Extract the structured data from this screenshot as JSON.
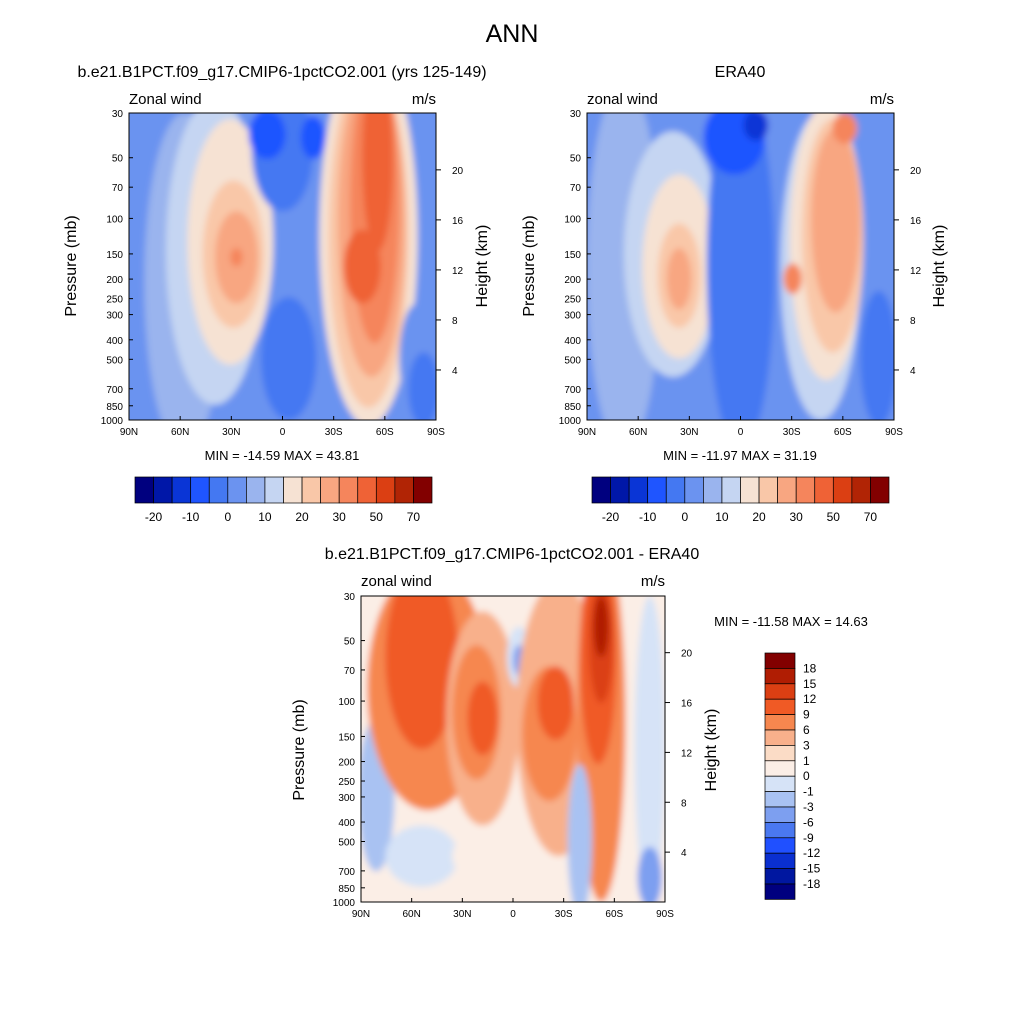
{
  "page_title": "ANN",
  "chart_data": [
    {
      "type": "heatmap",
      "title": "b.e21.B1PCT.f09_g17.CMIP6-1pctCO2.001 (yrs 125-149)",
      "left_label": "Zonal wind",
      "units": "m/s",
      "ylabel": "Pressure (mb)",
      "ylabel_right": "Height (km)",
      "x_ticks": [
        "90N",
        "60N",
        "30N",
        "0",
        "30S",
        "60S",
        "90S"
      ],
      "y_ticks": [
        "30",
        "50",
        "70",
        "100",
        "150",
        "200",
        "250",
        "300",
        "400",
        "500",
        "700",
        "850",
        "1000"
      ],
      "height_ticks": [
        "20",
        "16",
        "12",
        "8",
        "4"
      ],
      "stats_text": "MIN = -14.59  MAX = 43.81",
      "min": -14.59,
      "max": 43.81,
      "colorbar_labels": [
        "-20",
        "-10",
        "0",
        "10",
        "20",
        "30",
        "50",
        "70"
      ]
    },
    {
      "type": "heatmap",
      "title": "ERA40",
      "left_label": "zonal wind",
      "units": "m/s",
      "ylabel": "Pressure (mb)",
      "ylabel_right": "Height (km)",
      "x_ticks": [
        "90N",
        "60N",
        "30N",
        "0",
        "30S",
        "60S",
        "90S"
      ],
      "y_ticks": [
        "30",
        "50",
        "70",
        "100",
        "150",
        "200",
        "250",
        "300",
        "400",
        "500",
        "700",
        "850",
        "1000"
      ],
      "height_ticks": [
        "20",
        "16",
        "12",
        "8",
        "4"
      ],
      "stats_text": "MIN = -11.97  MAX =  31.19",
      "min": -11.97,
      "max": 31.19,
      "colorbar_labels": [
        "-20",
        "-10",
        "0",
        "10",
        "20",
        "30",
        "50",
        "70"
      ]
    },
    {
      "type": "heatmap",
      "title": "b.e21.B1PCT.f09_g17.CMIP6-1pctCO2.001 - ERA40",
      "left_label": "zonal wind",
      "units": "m/s",
      "ylabel": "Pressure (mb)",
      "ylabel_right": "Height (km)",
      "x_ticks": [
        "90N",
        "60N",
        "30N",
        "0",
        "30S",
        "60S",
        "90S"
      ],
      "y_ticks": [
        "30",
        "50",
        "70",
        "100",
        "150",
        "200",
        "250",
        "300",
        "400",
        "500",
        "700",
        "850",
        "1000"
      ],
      "height_ticks": [
        "20",
        "16",
        "12",
        "8",
        "4"
      ],
      "stats_text": "MIN = -11.58  MAX =  14.63",
      "min": -11.58,
      "max": 14.63,
      "colorbar_labels": [
        "18",
        "15",
        "12",
        "9",
        "6",
        "3",
        "1",
        "0",
        "-1",
        "-3",
        "-6",
        "-9",
        "-12",
        "-15",
        "-18"
      ]
    }
  ],
  "colors": {
    "abs_scale": [
      "#00007f",
      "#0017a8",
      "#0a35d6",
      "#1f55ff",
      "#4478f2",
      "#6b93f0",
      "#9ab4ee",
      "#c5d5f2",
      "#f6e2d3",
      "#f9c7a8",
      "#f8a681",
      "#f5855c",
      "#ef6236",
      "#db3f13",
      "#b12405",
      "#820000"
    ],
    "diff_scale": [
      "#820000",
      "#b01d03",
      "#db3f13",
      "#f05a25",
      "#f6874f",
      "#f8b08b",
      "#fbdcc6",
      "#fbeee6",
      "#d6e3f7",
      "#a9c2f2",
      "#7d9ff0",
      "#4a78f0",
      "#2050ff",
      "#0a2fd0",
      "#0017a0",
      "#00007f"
    ]
  }
}
